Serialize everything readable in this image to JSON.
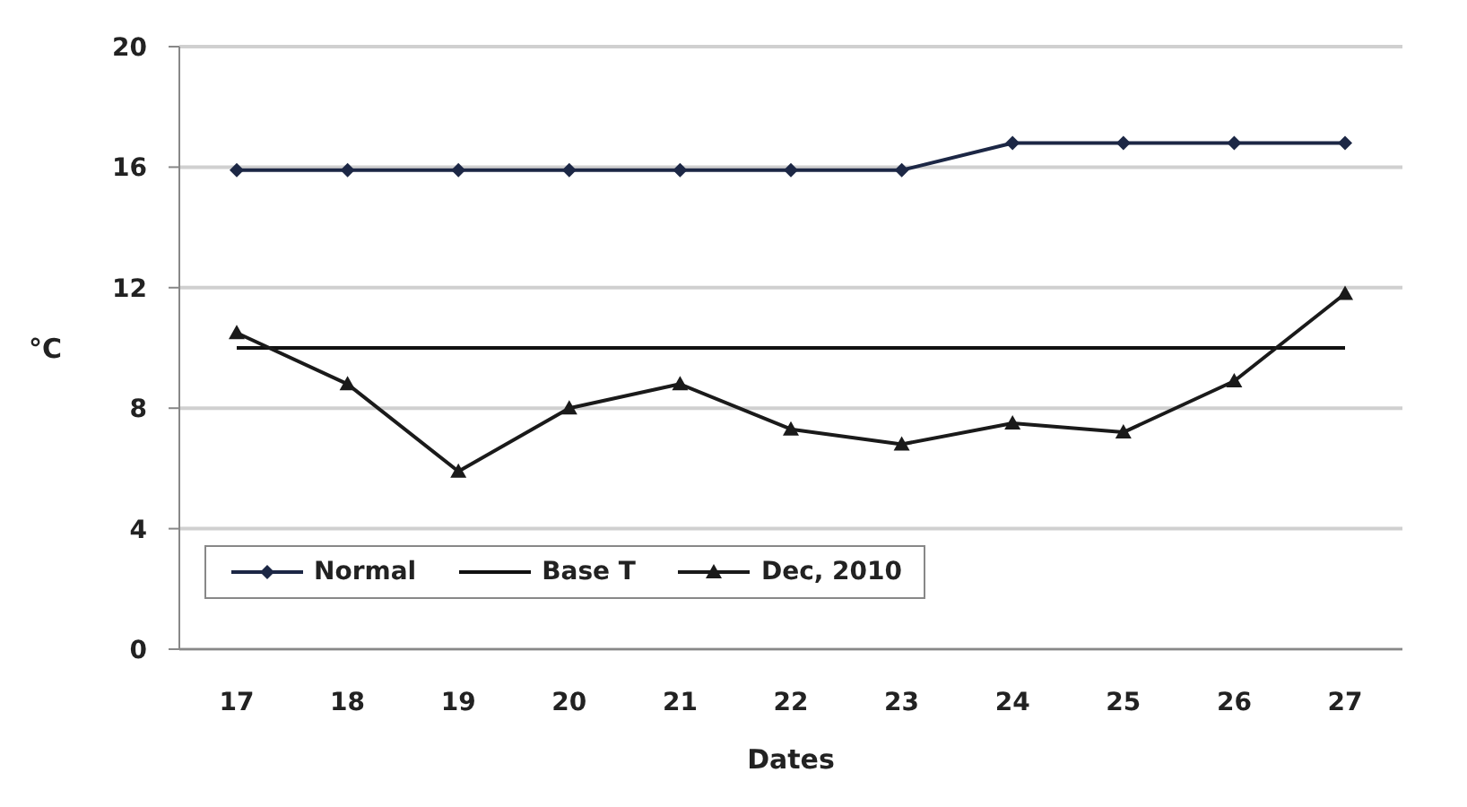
{
  "chart_data": {
    "type": "line",
    "xlabel": "Dates",
    "ylabel": "°C",
    "categories": [
      "17",
      "18",
      "19",
      "20",
      "21",
      "22",
      "23",
      "24",
      "25",
      "26",
      "27"
    ],
    "series": [
      {
        "name": "Normal",
        "color": "#1c2745",
        "marker": "diamond",
        "values": [
          15.9,
          15.9,
          15.9,
          15.9,
          15.9,
          15.9,
          15.9,
          16.8,
          16.8,
          16.8,
          16.8
        ]
      },
      {
        "name": "Base T",
        "color": "#111111",
        "marker": "none",
        "values": [
          10,
          10,
          10,
          10,
          10,
          10,
          10,
          10,
          10,
          10,
          10
        ]
      },
      {
        "name": "Dec, 2010",
        "color": "#1a1a1a",
        "marker": "triangle",
        "values": [
          10.5,
          8.8,
          5.9,
          8.0,
          8.8,
          7.3,
          6.8,
          7.5,
          7.2,
          8.9,
          11.8
        ]
      }
    ],
    "ylim": [
      0,
      20
    ],
    "yticks": [
      0,
      4,
      8,
      12,
      16,
      20
    ],
    "grid": "y",
    "legend": "bottom left"
  }
}
